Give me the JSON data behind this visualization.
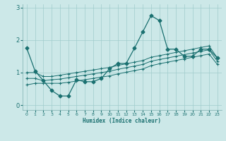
{
  "xlabel": "Humidex (Indice chaleur)",
  "bg_color": "#cce8e8",
  "line_color": "#1a7070",
  "xlim": [
    -0.5,
    23.5
  ],
  "ylim": [
    -0.15,
    3.1
  ],
  "yticks": [
    0,
    1,
    2,
    3
  ],
  "xticks": [
    0,
    1,
    2,
    3,
    4,
    5,
    6,
    7,
    8,
    9,
    10,
    11,
    12,
    13,
    14,
    15,
    16,
    17,
    18,
    19,
    20,
    21,
    22,
    23
  ],
  "series": {
    "line_main": {
      "x": [
        0,
        1,
        2,
        3,
        4,
        5,
        6,
        7,
        8,
        9,
        10,
        11,
        12,
        13,
        14,
        15,
        16,
        17,
        18,
        19,
        20,
        21,
        22,
        23
      ],
      "y": [
        1.75,
        1.05,
        0.75,
        0.45,
        0.28,
        0.28,
        0.78,
        0.72,
        0.72,
        0.82,
        1.12,
        1.28,
        1.28,
        1.75,
        2.25,
        2.75,
        2.6,
        1.72,
        1.72,
        1.5,
        1.5,
        1.72,
        1.72,
        1.45
      ]
    },
    "line_upper": {
      "x": [
        0,
        1,
        2,
        3,
        4,
        5,
        6,
        7,
        8,
        9,
        10,
        11,
        12,
        13,
        14,
        15,
        16,
        17,
        18,
        19,
        20,
        21,
        22,
        23
      ],
      "y": [
        1.0,
        1.0,
        0.88,
        0.88,
        0.92,
        0.96,
        1.0,
        1.04,
        1.08,
        1.12,
        1.16,
        1.22,
        1.27,
        1.32,
        1.37,
        1.47,
        1.52,
        1.57,
        1.62,
        1.67,
        1.72,
        1.77,
        1.82,
        1.45
      ]
    },
    "line_mid": {
      "x": [
        0,
        1,
        2,
        3,
        4,
        5,
        6,
        7,
        8,
        9,
        10,
        11,
        12,
        13,
        14,
        15,
        16,
        17,
        18,
        19,
        20,
        21,
        22,
        23
      ],
      "y": [
        0.82,
        0.82,
        0.75,
        0.78,
        0.8,
        0.84,
        0.88,
        0.92,
        0.96,
        1.0,
        1.04,
        1.1,
        1.15,
        1.2,
        1.25,
        1.35,
        1.4,
        1.45,
        1.5,
        1.55,
        1.6,
        1.65,
        1.7,
        1.35
      ]
    },
    "line_lower": {
      "x": [
        0,
        1,
        2,
        3,
        4,
        5,
        6,
        7,
        8,
        9,
        10,
        11,
        12,
        13,
        14,
        15,
        16,
        17,
        18,
        19,
        20,
        21,
        22,
        23
      ],
      "y": [
        0.62,
        0.67,
        0.67,
        0.67,
        0.67,
        0.7,
        0.74,
        0.78,
        0.82,
        0.86,
        0.9,
        0.96,
        1.01,
        1.06,
        1.11,
        1.21,
        1.27,
        1.32,
        1.37,
        1.42,
        1.47,
        1.52,
        1.57,
        1.25
      ]
    }
  }
}
